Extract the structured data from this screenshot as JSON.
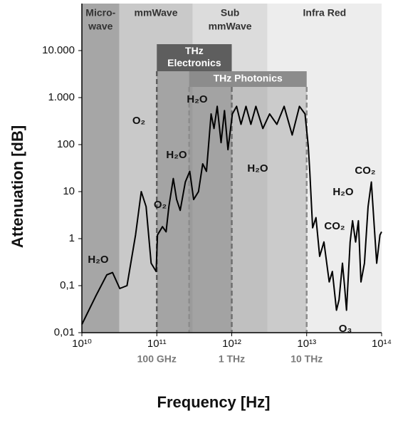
{
  "chart_data": {
    "type": "line",
    "xlabel": "Frequency [Hz]",
    "ylabel": "Attenuation [dB]",
    "log_x": true,
    "log_y": true,
    "xlim": [
      10000000000.0,
      100000000000000.0
    ],
    "ylim": [
      0.01,
      100000
    ],
    "xticks": [
      {
        "value": 10000000000.0,
        "label": "10¹⁰"
      },
      {
        "value": 100000000000.0,
        "label": "10¹¹"
      },
      {
        "value": 1000000000000.0,
        "label": "10¹²"
      },
      {
        "value": 10000000000000.0,
        "label": "10¹³"
      },
      {
        "value": 100000000000000.0,
        "label": "10¹⁴"
      }
    ],
    "yticks": [
      {
        "value": 0.01,
        "label": "0,01"
      },
      {
        "value": 0.1,
        "label": "0,1"
      },
      1,
      10,
      100,
      {
        "value": 1000,
        "label": "1.000"
      },
      {
        "value": 10000,
        "label": "10.000"
      }
    ],
    "secondary_xlabels": [
      {
        "value": 100000000000.0,
        "label": "100 GHz"
      },
      {
        "value": 1000000000000.0,
        "label": "1 THz"
      },
      {
        "value": 10000000000000.0,
        "label": "10 THz"
      }
    ],
    "bands": [
      {
        "label": [
          "Micro-",
          "wave"
        ],
        "x": [
          10000000000.0,
          31600000000.0
        ],
        "color": "#a6a6a6"
      },
      {
        "label": [
          "mmWave"
        ],
        "x": [
          31600000000.0,
          300000000000.0
        ],
        "color": "#c9c9c9"
      },
      {
        "label": [
          "Sub",
          "mmWave"
        ],
        "x": [
          300000000000.0,
          3000000000000.0
        ],
        "color": "#dcdcdc"
      },
      {
        "label": [
          "Infra Red"
        ],
        "x": [
          3000000000000.0,
          100000000000000.0
        ],
        "color": "#ededed"
      }
    ],
    "overlays": [
      {
        "label": [
          "THz",
          "Electronics"
        ],
        "x": [
          100000000000.0,
          1000000000000.0
        ],
        "color": "#5e5e5e"
      },
      {
        "label": [
          "THz Photonics"
        ],
        "x": [
          270000000000.0,
          10000000000000.0
        ],
        "color": "#8c8c8c"
      }
    ],
    "series": [
      {
        "color": "#000000",
        "x": [
          10000000000.0,
          15500000000.0,
          21500000000.0,
          25700000000.0,
          32000000000.0,
          40000000000.0,
          52000000000.0,
          62000000000.0,
          72000000000.0,
          84000000000.0,
          98000000000.0,
          102000000000.0,
          119000000000.0,
          133000000000.0,
          145000000000.0,
          166000000000.0,
          184000000000.0,
          205000000000.0,
          240000000000.0,
          275000000000.0,
          310000000000.0,
          360000000000.0,
          410000000000.0,
          460000000000.0,
          530000000000.0,
          580000000000.0,
          640000000000.0,
          720000000000.0,
          800000000000.0,
          890000000000.0,
          1020000000000.0,
          1160000000000.0,
          1330000000000.0,
          1550000000000.0,
          1800000000000.0,
          2100000000000.0,
          2600000000000.0,
          3200000000000.0,
          4000000000000.0,
          5000000000000.0,
          6400000000000.0,
          8000000000000.0,
          9500000000000.0,
          10500000000000.0,
          11000000000000.0,
          12000000000000.0,
          13300000000000.0,
          14900000000000.0,
          17000000000000.0,
          20000000000000.0,
          22000000000000.0,
          25000000000000.0,
          27000000000000.0,
          30000000000000.0,
          32000000000000.0,
          34000000000000.0,
          38000000000000.0,
          41000000000000.0,
          45000000000000.0,
          49000000000000.0,
          53000000000000.0,
          59000000000000.0,
          66000000000000.0,
          73000000000000.0,
          80000000000000.0,
          86000000000000.0,
          95000000000000.0,
          100000000000000.0
        ],
        "values": [
          0.015,
          0.062,
          0.17,
          0.19,
          0.087,
          0.1,
          1.2,
          10,
          4.8,
          0.3,
          0.2,
          1.2,
          1.8,
          1.4,
          4.8,
          19,
          6.8,
          4,
          16,
          27,
          6.8,
          10,
          39,
          27,
          450,
          220,
          650,
          110,
          530,
          78,
          450,
          650,
          270,
          650,
          270,
          650,
          220,
          450,
          270,
          650,
          160,
          650,
          450,
          93,
          27,
          1.7,
          2.8,
          0.42,
          0.85,
          0.12,
          0.2,
          0.03,
          0.05,
          0.3,
          0.1,
          0.03,
          0.85,
          2.4,
          0.85,
          2.4,
          0.12,
          0.3,
          4.8,
          16,
          1.7,
          0.3,
          1.2,
          1.4
        ]
      }
    ],
    "annotations": [
      "H₂O",
      "O₂",
      "H₂O",
      "H₂O",
      "O₂",
      "H₂O",
      "CO₂",
      "H₂O",
      "CO₂",
      "O₃"
    ]
  }
}
